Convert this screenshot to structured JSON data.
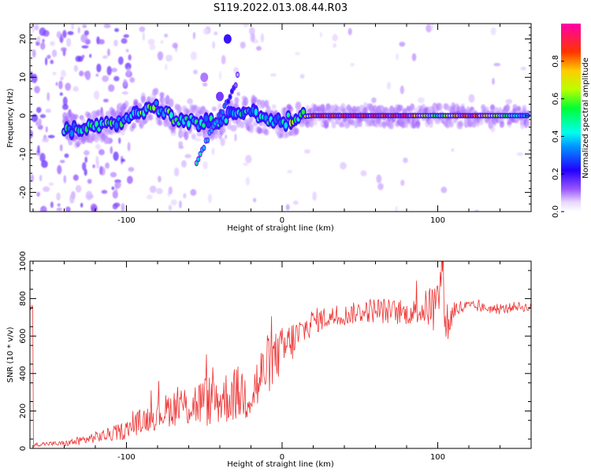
{
  "title": "S119.2022.013.08.44.R03",
  "colors": {
    "snr_line": "#ee3333",
    "frame": "#000000",
    "background": "#ffffff"
  },
  "chart_data": [
    {
      "type": "heatmap",
      "name": "spectrogram",
      "xlabel": "Height of straight line (km)",
      "ylabel": "Frequency (Hz)",
      "xlim": [
        -162,
        160
      ],
      "ylim": [
        -25,
        24
      ],
      "xticks": [
        -100,
        0,
        100
      ],
      "yticks": [
        -20,
        -10,
        0,
        10,
        20
      ],
      "colorbar": {
        "label": "Normalized spectral amplitude",
        "range": [
          0,
          1
        ],
        "ticks": [
          0.0,
          0.2,
          0.4,
          0.6,
          0.8
        ]
      },
      "ridge": [
        {
          "x": -140,
          "y": -3.5,
          "a": 0.45
        },
        {
          "x": -130,
          "y": -3.8,
          "a": 0.5
        },
        {
          "x": -120,
          "y": -3.0,
          "a": 0.5
        },
        {
          "x": -110,
          "y": -2.5,
          "a": 0.5
        },
        {
          "x": -100,
          "y": -0.5,
          "a": 0.55
        },
        {
          "x": -90,
          "y": 1.5,
          "a": 0.55
        },
        {
          "x": -80,
          "y": 2.5,
          "a": 0.55
        },
        {
          "x": -70,
          "y": -1.0,
          "a": 0.5
        },
        {
          "x": -60,
          "y": -1.5,
          "a": 0.45
        },
        {
          "x": -50,
          "y": -2.0,
          "a": 0.45
        },
        {
          "x": -40,
          "y": -1.5,
          "a": 0.45
        },
        {
          "x": -30,
          "y": 1.0,
          "a": 0.45
        },
        {
          "x": -20,
          "y": 0.5,
          "a": 0.45
        },
        {
          "x": -10,
          "y": -0.5,
          "a": 0.45
        },
        {
          "x": 0,
          "y": -1.8,
          "a": 0.5
        },
        {
          "x": 5,
          "y": -0.8,
          "a": 0.55
        },
        {
          "x": 10,
          "y": -0.3,
          "a": 0.6
        },
        {
          "x": 20,
          "y": 0.0,
          "a": 0.95
        },
        {
          "x": 40,
          "y": 0.0,
          "a": 0.95
        },
        {
          "x": 60,
          "y": 0.0,
          "a": 0.95
        },
        {
          "x": 80,
          "y": 0.0,
          "a": 0.95
        },
        {
          "x": 100,
          "y": 0.0,
          "a": 0.6
        },
        {
          "x": 120,
          "y": 0.0,
          "a": 0.95
        },
        {
          "x": 140,
          "y": 0.0,
          "a": 0.65
        },
        {
          "x": 158,
          "y": 0.0,
          "a": 0.35
        }
      ],
      "branch": [
        {
          "x": -55,
          "y": -12.5,
          "a": 0.5
        },
        {
          "x": -50,
          "y": -8.0,
          "a": 0.45
        },
        {
          "x": -45,
          "y": -3.5,
          "a": 0.4
        },
        {
          "x": -40,
          "y": 0.0,
          "a": 0.35
        },
        {
          "x": -35,
          "y": 4.0,
          "a": 0.3
        },
        {
          "x": -30,
          "y": 8.0,
          "a": 0.15
        },
        {
          "x": -28,
          "y": 12.0,
          "a": 0.1
        }
      ]
    },
    {
      "type": "line",
      "name": "snr",
      "xlabel": "Height of straight line (km)",
      "ylabel": "SNR (10 * v/v)",
      "xlim": [
        -162,
        160
      ],
      "ylim": [
        0,
        1000
      ],
      "xticks": [
        -100,
        0,
        100
      ],
      "yticks": [
        0,
        200,
        400,
        600,
        800,
        1000
      ],
      "series": [
        {
          "name": "SNR",
          "x": [
            -160,
            -150,
            -140,
            -130,
            -120,
            -110,
            -100,
            -90,
            -80,
            -70,
            -60,
            -50,
            -40,
            -30,
            -20,
            -15,
            -10,
            -5,
            0,
            5,
            10,
            15,
            20,
            30,
            40,
            50,
            60,
            70,
            80,
            90,
            95,
            100,
            103,
            105,
            107,
            110,
            120,
            130,
            140,
            150,
            160
          ],
          "y": [
            20,
            25,
            25,
            40,
            60,
            75,
            100,
            150,
            180,
            220,
            230,
            250,
            260,
            290,
            300,
            350,
            440,
            480,
            520,
            560,
            600,
            640,
            680,
            700,
            710,
            730,
            740,
            730,
            720,
            740,
            760,
            780,
            990,
            720,
            650,
            740,
            760,
            750,
            740,
            760,
            750
          ],
          "noise": [
            10,
            12,
            15,
            25,
            30,
            40,
            50,
            70,
            80,
            100,
            120,
            140,
            140,
            150,
            160,
            170,
            170,
            140,
            130,
            120,
            100,
            80,
            70,
            60,
            55,
            60,
            70,
            70,
            60,
            80,
            120,
            150,
            150,
            160,
            100,
            60,
            30,
            25,
            25,
            25,
            25
          ]
        }
      ]
    }
  ]
}
